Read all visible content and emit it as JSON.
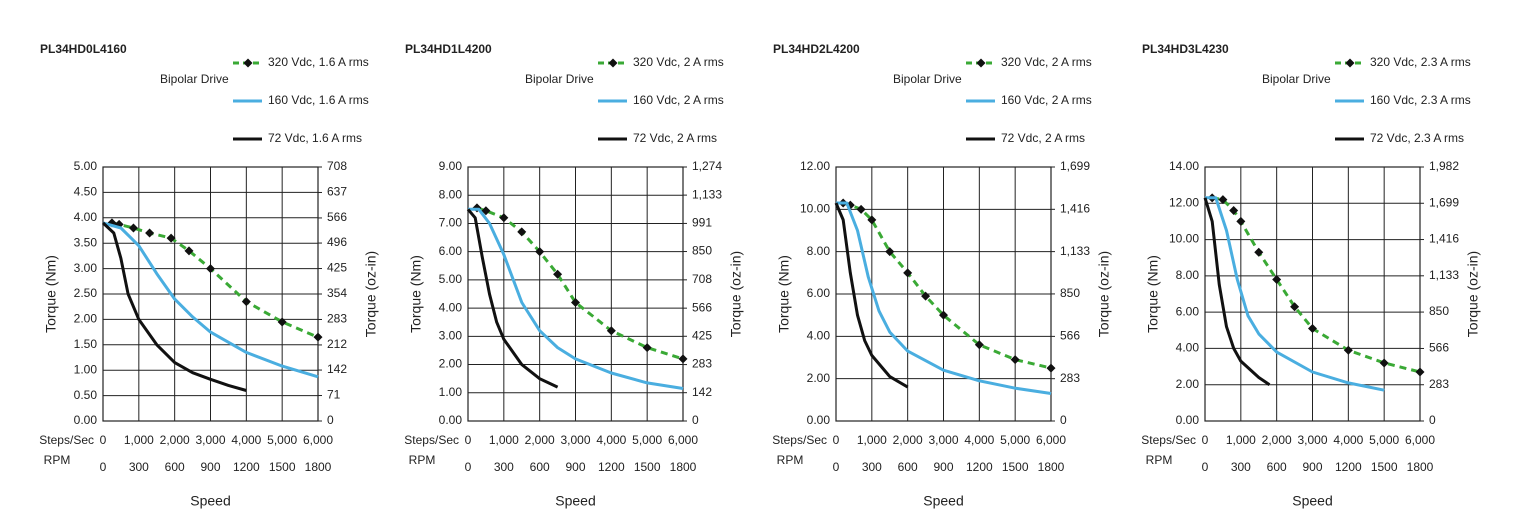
{
  "chart_data": [
    {
      "type": "line",
      "title": "PL34HD0L4160",
      "annotation": "Bipolar Drive",
      "ylabel": "Torque (Nm)",
      "y2label": "Torque (oz-in)",
      "xlabel": "Speed",
      "x_unit": "Steps/Sec",
      "x2_unit": "RPM",
      "xlim": [
        0,
        6000
      ],
      "xticks": [
        0,
        {
          "value": 1000,
          "label": "1,000"
        },
        {
          "value": 2000,
          "label": "2,000"
        },
        {
          "value": 3000,
          "label": "3,000"
        },
        {
          "value": 4000,
          "label": "4,000"
        },
        {
          "value": 5000,
          "label": "5,000"
        },
        {
          "value": 6000,
          "label": "6,000"
        }
      ],
      "x2lim": [
        0,
        1800
      ],
      "x2ticks": [
        0,
        300,
        600,
        900,
        1200,
        1500,
        1800
      ],
      "ylim": [
        0,
        5
      ],
      "yticks": [
        {
          "value": 0,
          "label": "0.00"
        },
        {
          "value": 0.5,
          "label": "0.50"
        },
        {
          "value": 1,
          "label": "1.00"
        },
        {
          "value": 1.5,
          "label": "1.50"
        },
        {
          "value": 2,
          "label": "2.00"
        },
        {
          "value": 2.5,
          "label": "2.50"
        },
        {
          "value": 3,
          "label": "3.00"
        },
        {
          "value": 3.5,
          "label": "3.50"
        },
        {
          "value": 4,
          "label": "4.00"
        },
        {
          "value": 4.5,
          "label": "4.50"
        },
        {
          "value": 5,
          "label": "5.00"
        }
      ],
      "y2lim": [
        0,
        708
      ],
      "y2ticks": [
        0,
        71,
        142,
        212,
        283,
        354,
        425,
        496,
        566,
        637,
        708
      ],
      "grid": true,
      "series": [
        {
          "name": "320 Vdc, 1.6 A rms",
          "color": "#3aa935",
          "dashed": true,
          "marker": "diamond",
          "x": [
            250,
            450,
            850,
            1300,
            1900,
            2400,
            3000,
            4000,
            5000,
            6000
          ],
          "values": [
            3.9,
            3.87,
            3.8,
            3.7,
            3.6,
            3.35,
            3.0,
            2.35,
            1.95,
            1.65
          ]
        },
        {
          "name": "160 Vdc, 1.6 A rms",
          "color": "#4aaee0",
          "dashed": false,
          "marker": "none",
          "x": [
            0,
            500,
            1000,
            1500,
            2000,
            2500,
            3000,
            4000,
            5000,
            6000
          ],
          "values": [
            3.9,
            3.8,
            3.45,
            2.9,
            2.4,
            2.05,
            1.75,
            1.35,
            1.08,
            0.87
          ]
        },
        {
          "name": "72 Vdc, 1.6 A rms",
          "color": "#111111",
          "dashed": false,
          "marker": "none",
          "x": [
            0,
            300,
            500,
            700,
            1000,
            1500,
            2000,
            2500,
            3000,
            3500,
            4000
          ],
          "values": [
            3.9,
            3.7,
            3.2,
            2.5,
            2.0,
            1.5,
            1.15,
            0.95,
            0.82,
            0.7,
            0.6
          ]
        }
      ]
    },
    {
      "type": "line",
      "title": "PL34HD1L4200",
      "annotation": "Bipolar Drive",
      "ylabel": "Torque (Nm)",
      "y2label": "Torque (oz-in)",
      "xlabel": "Speed",
      "x_unit": "Steps/Sec",
      "x2_unit": "RPM",
      "xlim": [
        0,
        6000
      ],
      "xticks": [
        0,
        {
          "value": 1000,
          "label": "1,000"
        },
        {
          "value": 2000,
          "label": "2,000"
        },
        {
          "value": 3000,
          "label": "3,000"
        },
        {
          "value": 4000,
          "label": "4,000"
        },
        {
          "value": 5000,
          "label": "5,000"
        },
        {
          "value": 6000,
          "label": "6,000"
        }
      ],
      "x2lim": [
        0,
        1800
      ],
      "x2ticks": [
        0,
        300,
        600,
        900,
        1200,
        1500,
        1800
      ],
      "ylim": [
        0,
        9
      ],
      "yticks": [
        {
          "value": 0,
          "label": "0.00"
        },
        {
          "value": 1,
          "label": "1.00"
        },
        {
          "value": 2,
          "label": "2.00"
        },
        {
          "value": 3,
          "label": "3.00"
        },
        {
          "value": 4,
          "label": "4.00"
        },
        {
          "value": 5,
          "label": "5.00"
        },
        {
          "value": 6,
          "label": "6.00"
        },
        {
          "value": 7,
          "label": "7.00"
        },
        {
          "value": 8,
          "label": "8.00"
        },
        {
          "value": 9,
          "label": "9.00"
        }
      ],
      "y2lim": [
        0,
        1274
      ],
      "y2ticks": [
        0,
        142,
        283,
        425,
        566,
        708,
        850,
        991,
        {
          "value": 1133,
          "label": "1,133"
        },
        {
          "value": 1274,
          "label": "1,274"
        }
      ],
      "grid": true,
      "series": [
        {
          "name": "320 Vdc, 2 A rms",
          "color": "#3aa935",
          "dashed": true,
          "marker": "diamond",
          "x": [
            250,
            500,
            1000,
            1500,
            2000,
            2500,
            3000,
            4000,
            5000,
            6000
          ],
          "values": [
            7.55,
            7.45,
            7.2,
            6.7,
            6.0,
            5.2,
            4.2,
            3.2,
            2.6,
            2.2
          ]
        },
        {
          "name": "160 Vdc, 2 A rms",
          "color": "#4aaee0",
          "dashed": false,
          "marker": "none",
          "x": [
            0,
            300,
            600,
            1000,
            1500,
            2000,
            2500,
            3000,
            4000,
            5000,
            6000
          ],
          "values": [
            7.5,
            7.5,
            7.0,
            5.9,
            4.2,
            3.2,
            2.6,
            2.2,
            1.7,
            1.35,
            1.15
          ]
        },
        {
          "name": "72 Vdc, 2 A rms",
          "color": "#111111",
          "dashed": false,
          "marker": "none",
          "x": [
            0,
            200,
            400,
            600,
            800,
            1000,
            1500,
            2000,
            2500
          ],
          "values": [
            7.5,
            7.2,
            5.8,
            4.5,
            3.5,
            2.9,
            2.0,
            1.5,
            1.2
          ]
        }
      ]
    },
    {
      "type": "line",
      "title": "PL34HD2L4200",
      "annotation": "Bipolar Drive",
      "ylabel": "Torque (Nm)",
      "y2label": "Torque (oz-in)",
      "xlabel": "Speed",
      "x_unit": "Steps/Sec",
      "x2_unit": "RPM",
      "xlim": [
        0,
        6000
      ],
      "xticks": [
        0,
        {
          "value": 1000,
          "label": "1,000"
        },
        {
          "value": 2000,
          "label": "2,000"
        },
        {
          "value": 3000,
          "label": "3,000"
        },
        {
          "value": 4000,
          "label": "4,000"
        },
        {
          "value": 5000,
          "label": "5,000"
        },
        {
          "value": 6000,
          "label": "6,000"
        }
      ],
      "x2lim": [
        0,
        1800
      ],
      "x2ticks": [
        0,
        300,
        600,
        900,
        1200,
        1500,
        1800
      ],
      "ylim": [
        0,
        12
      ],
      "yticks": [
        {
          "value": 0,
          "label": "0.00"
        },
        {
          "value": 2,
          "label": "2.00"
        },
        {
          "value": 4,
          "label": "4.00"
        },
        {
          "value": 6,
          "label": "6.00"
        },
        {
          "value": 8,
          "label": "8.00"
        },
        {
          "value": 10,
          "label": "10.00"
        },
        {
          "value": 12,
          "label": "12.00"
        }
      ],
      "y2lim": [
        0,
        1699
      ],
      "y2ticks": [
        0,
        283,
        566,
        850,
        {
          "value": 1133,
          "label": "1,133"
        },
        {
          "value": 1416,
          "label": "1,416"
        },
        {
          "value": 1699,
          "label": "1,699"
        }
      ],
      "grid": true,
      "series": [
        {
          "name": "320 Vdc, 2 A rms",
          "color": "#3aa935",
          "dashed": true,
          "marker": "diamond",
          "x": [
            200,
            400,
            700,
            1000,
            1500,
            2000,
            2500,
            3000,
            4000,
            5000,
            6000
          ],
          "values": [
            10.3,
            10.2,
            10.0,
            9.5,
            8.0,
            7.0,
            5.9,
            5.0,
            3.6,
            2.9,
            2.5
          ]
        },
        {
          "name": "160 Vdc, 2 A rms",
          "color": "#4aaee0",
          "dashed": false,
          "marker": "none",
          "x": [
            0,
            300,
            600,
            900,
            1200,
            1500,
            2000,
            3000,
            4000,
            5000,
            6000
          ],
          "values": [
            10.3,
            10.3,
            9.0,
            6.8,
            5.2,
            4.2,
            3.3,
            2.4,
            1.9,
            1.55,
            1.3
          ]
        },
        {
          "name": "72 Vdc, 2 A rms",
          "color": "#111111",
          "dashed": false,
          "marker": "none",
          "x": [
            0,
            200,
            400,
            600,
            800,
            1000,
            1500,
            2000
          ],
          "values": [
            10.3,
            9.5,
            7.0,
            5.0,
            3.8,
            3.1,
            2.1,
            1.6
          ]
        }
      ]
    },
    {
      "type": "line",
      "title": "PL34HD3L4230",
      "annotation": "Bipolar Drive",
      "ylabel": "Torque (Nm)",
      "y2label": "Torque (oz-in)",
      "xlabel": "Speed",
      "x_unit": "Steps/Sec",
      "x2_unit": "RPM",
      "xlim": [
        0,
        6000
      ],
      "xticks": [
        0,
        {
          "value": 1000,
          "label": "1,000"
        },
        {
          "value": 2000,
          "label": "2,000"
        },
        {
          "value": 3000,
          "label": "3,000"
        },
        {
          "value": 4000,
          "label": "4,000"
        },
        {
          "value": 5000,
          "label": "5,000"
        },
        {
          "value": 6000,
          "label": "6,000"
        }
      ],
      "x2lim": [
        0,
        1800
      ],
      "x2ticks": [
        0,
        300,
        600,
        900,
        1200,
        1500,
        1800
      ],
      "ylim": [
        0,
        14
      ],
      "yticks": [
        {
          "value": 0,
          "label": "0.00"
        },
        {
          "value": 2,
          "label": "2.00"
        },
        {
          "value": 4,
          "label": "4.00"
        },
        {
          "value": 6,
          "label": "6.00"
        },
        {
          "value": 8,
          "label": "8.00"
        },
        {
          "value": 10,
          "label": "10.00"
        },
        {
          "value": 12,
          "label": "12.00"
        },
        {
          "value": 14,
          "label": "14.00"
        }
      ],
      "y2lim": [
        0,
        1982
      ],
      "y2ticks": [
        0,
        283,
        566,
        850,
        {
          "value": 1133,
          "label": "1,133"
        },
        {
          "value": 1416,
          "label": "1,416"
        },
        {
          "value": 1699,
          "label": "1,699"
        },
        {
          "value": 1982,
          "label": "1,982"
        }
      ],
      "grid": true,
      "series": [
        {
          "name": "320 Vdc, 2.3 A rms",
          "color": "#3aa935",
          "dashed": true,
          "marker": "diamond",
          "x": [
            200,
            500,
            800,
            1000,
            1500,
            2000,
            2500,
            3000,
            4000,
            5000,
            6000
          ],
          "values": [
            12.3,
            12.2,
            11.6,
            11.0,
            9.3,
            7.8,
            6.3,
            5.1,
            3.9,
            3.2,
            2.7
          ]
        },
        {
          "name": "160 Vdc, 2.3 A rms",
          "color": "#4aaee0",
          "dashed": false,
          "marker": "none",
          "x": [
            0,
            300,
            600,
            900,
            1200,
            1500,
            2000,
            3000,
            4000,
            5000
          ],
          "values": [
            12.3,
            12.3,
            10.5,
            7.8,
            5.8,
            4.8,
            3.8,
            2.7,
            2.1,
            1.7
          ]
        },
        {
          "name": "72 Vdc, 2.3 A rms",
          "color": "#111111",
          "dashed": false,
          "marker": "none",
          "x": [
            0,
            200,
            400,
            600,
            800,
            1000,
            1500,
            1800
          ],
          "values": [
            12.3,
            11.0,
            7.5,
            5.2,
            4.0,
            3.3,
            2.4,
            2.0
          ]
        }
      ]
    }
  ]
}
